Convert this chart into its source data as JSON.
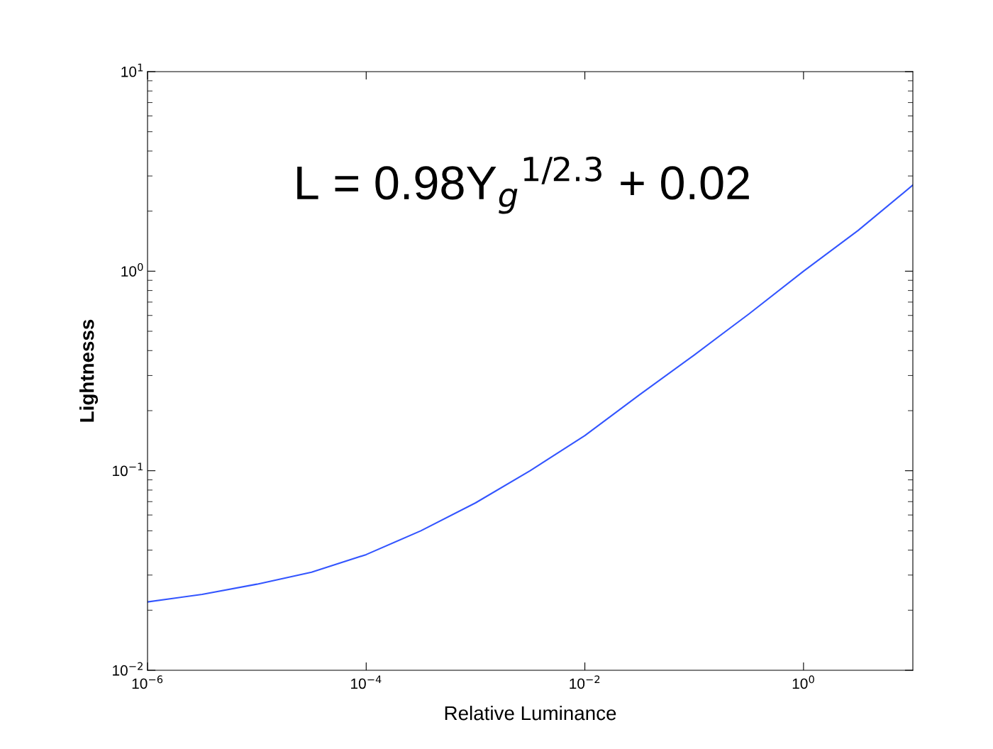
{
  "chart_data": {
    "type": "line",
    "xlabel": "Relative Luminance",
    "ylabel": "Lightnesss",
    "annotations": [
      "L = 0.98Y$_{g}$$^{1/2.3}$ + 0.02"
    ],
    "x": [
      1e-06,
      3.16e-06,
      1e-05,
      3.16e-05,
      0.0001,
      0.000316,
      0.001,
      0.00316,
      0.01,
      0.0316,
      0.1,
      0.316,
      1,
      3.16,
      10
    ],
    "series": [
      {
        "color": "#3355ff",
        "values": [
          0.022,
          0.024,
          0.027,
          0.031,
          0.038,
          0.05,
          0.069,
          0.1,
          0.15,
          0.24,
          0.38,
          0.61,
          1.0,
          1.6,
          2.7
        ]
      }
    ],
    "log": "xy",
    "grid": false,
    "legend": false,
    "marker": "none",
    "line_style": "solid",
    "xlim": [
      1e-06,
      10
    ],
    "ylim": [
      0.01,
      10
    ],
    "xticks": [
      {
        "value": 1e-06,
        "label": "10$^{−6}$"
      },
      {
        "value": 0.0001,
        "label": "10$^{−4}$"
      },
      {
        "value": 0.01,
        "label": "10$^{−2}$"
      },
      {
        "value": 1,
        "label": "10$^{0}$"
      }
    ],
    "yticks": [
      {
        "value": 0.01,
        "label": "10$^{−2}$"
      },
      {
        "value": 0.1,
        "label": "10$^{−1}$"
      },
      {
        "value": 1,
        "label": "10$^{0}$"
      },
      {
        "value": 10,
        "label": "10$^{1}$"
      }
    ]
  }
}
